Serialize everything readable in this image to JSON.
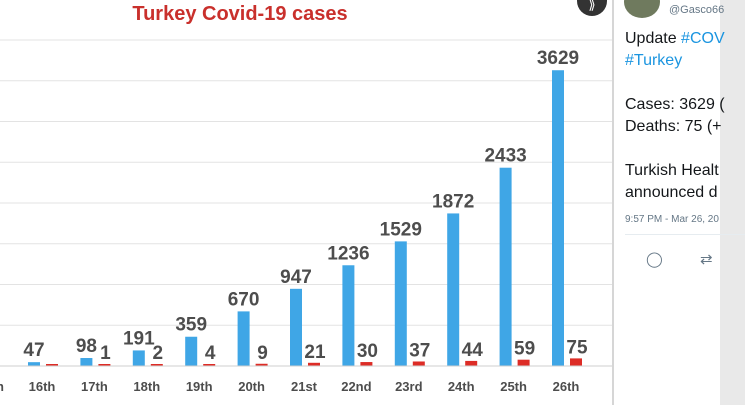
{
  "chart_data": {
    "type": "bar",
    "title": "Turkey Covid-19 cases",
    "categories": [
      "16th",
      "17th",
      "18th",
      "19th",
      "20th",
      "21st",
      "22nd",
      "23rd",
      "24th",
      "25th",
      "26th"
    ],
    "series": [
      {
        "name": "Cases",
        "color": "#3fa6e6",
        "values": [
          47,
          98,
          191,
          359,
          670,
          947,
          1236,
          1529,
          1872,
          2433,
          3629
        ]
      },
      {
        "name": "Deaths",
        "color": "#dd2c26",
        "values": [
          0,
          1,
          2,
          4,
          9,
          21,
          30,
          37,
          44,
          59,
          75
        ]
      }
    ],
    "cases_labels": [
      "47",
      "98",
      "191",
      "359",
      "670",
      "947",
      "1236",
      "1529",
      "1872",
      "2433",
      "3629"
    ],
    "deaths_labels": [
      "",
      "1",
      "2",
      "4",
      "9",
      "21",
      "30",
      "37",
      "44",
      "59",
      "75"
    ],
    "cut_off_category_label": "h",
    "ylim": [
      0,
      4000
    ],
    "grid": true
  },
  "colors": {
    "title": "#c9302c",
    "label": "#4d4d4d",
    "link": "#1b95e0"
  },
  "share_icon": "share-icon",
  "tweet": {
    "handle": "@Gasco66",
    "update_prefix": "Update ",
    "hashtag_covid": "#COV",
    "hashtag_turkey": "#Turkey",
    "cases_line": "Cases: 3629 (",
    "deaths_line": "Deaths: 75 (+",
    "body_line1": "Turkish Healt",
    "body_line2": "announced d",
    "timestamp": "9:57 PM - Mar 26, 20",
    "actions": [
      {
        "name": "reply-icon",
        "glyph": "◯"
      },
      {
        "name": "retweet-icon",
        "glyph": "⇄"
      }
    ]
  }
}
